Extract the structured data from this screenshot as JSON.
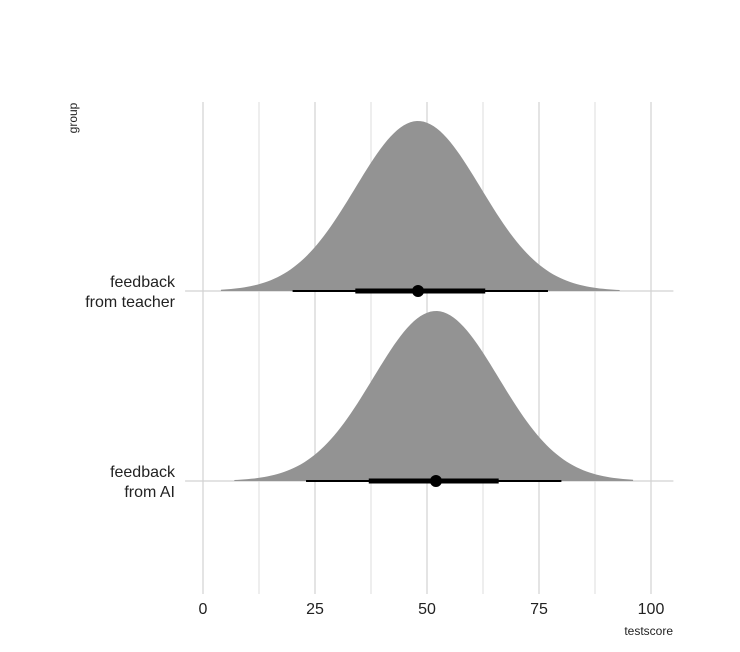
{
  "chart_data": {
    "type": "halfeye",
    "xlabel": "testscore",
    "ylabel": "group",
    "xlim": [
      -4,
      105
    ],
    "x_ticks": [
      0,
      25,
      50,
      75,
      100
    ],
    "x_tick_labels": [
      "0",
      "25",
      "50",
      "75",
      "100"
    ],
    "grid": true,
    "fill_color": "#939393",
    "interval_color": "#000000",
    "groups": [
      {
        "label_lines": [
          "feedback",
          "from teacher"
        ],
        "density": {
          "mean": 48,
          "sd": 14,
          "range": [
            4,
            93
          ]
        },
        "point": 48,
        "interval_66": [
          34,
          63
        ],
        "interval_95": [
          20,
          77
        ]
      },
      {
        "label_lines": [
          "feedback",
          "from AI"
        ],
        "density": {
          "mean": 52,
          "sd": 14,
          "range": [
            7,
            96
          ]
        },
        "point": 52,
        "interval_66": [
          37,
          66
        ],
        "interval_95": [
          23,
          80
        ]
      }
    ]
  }
}
